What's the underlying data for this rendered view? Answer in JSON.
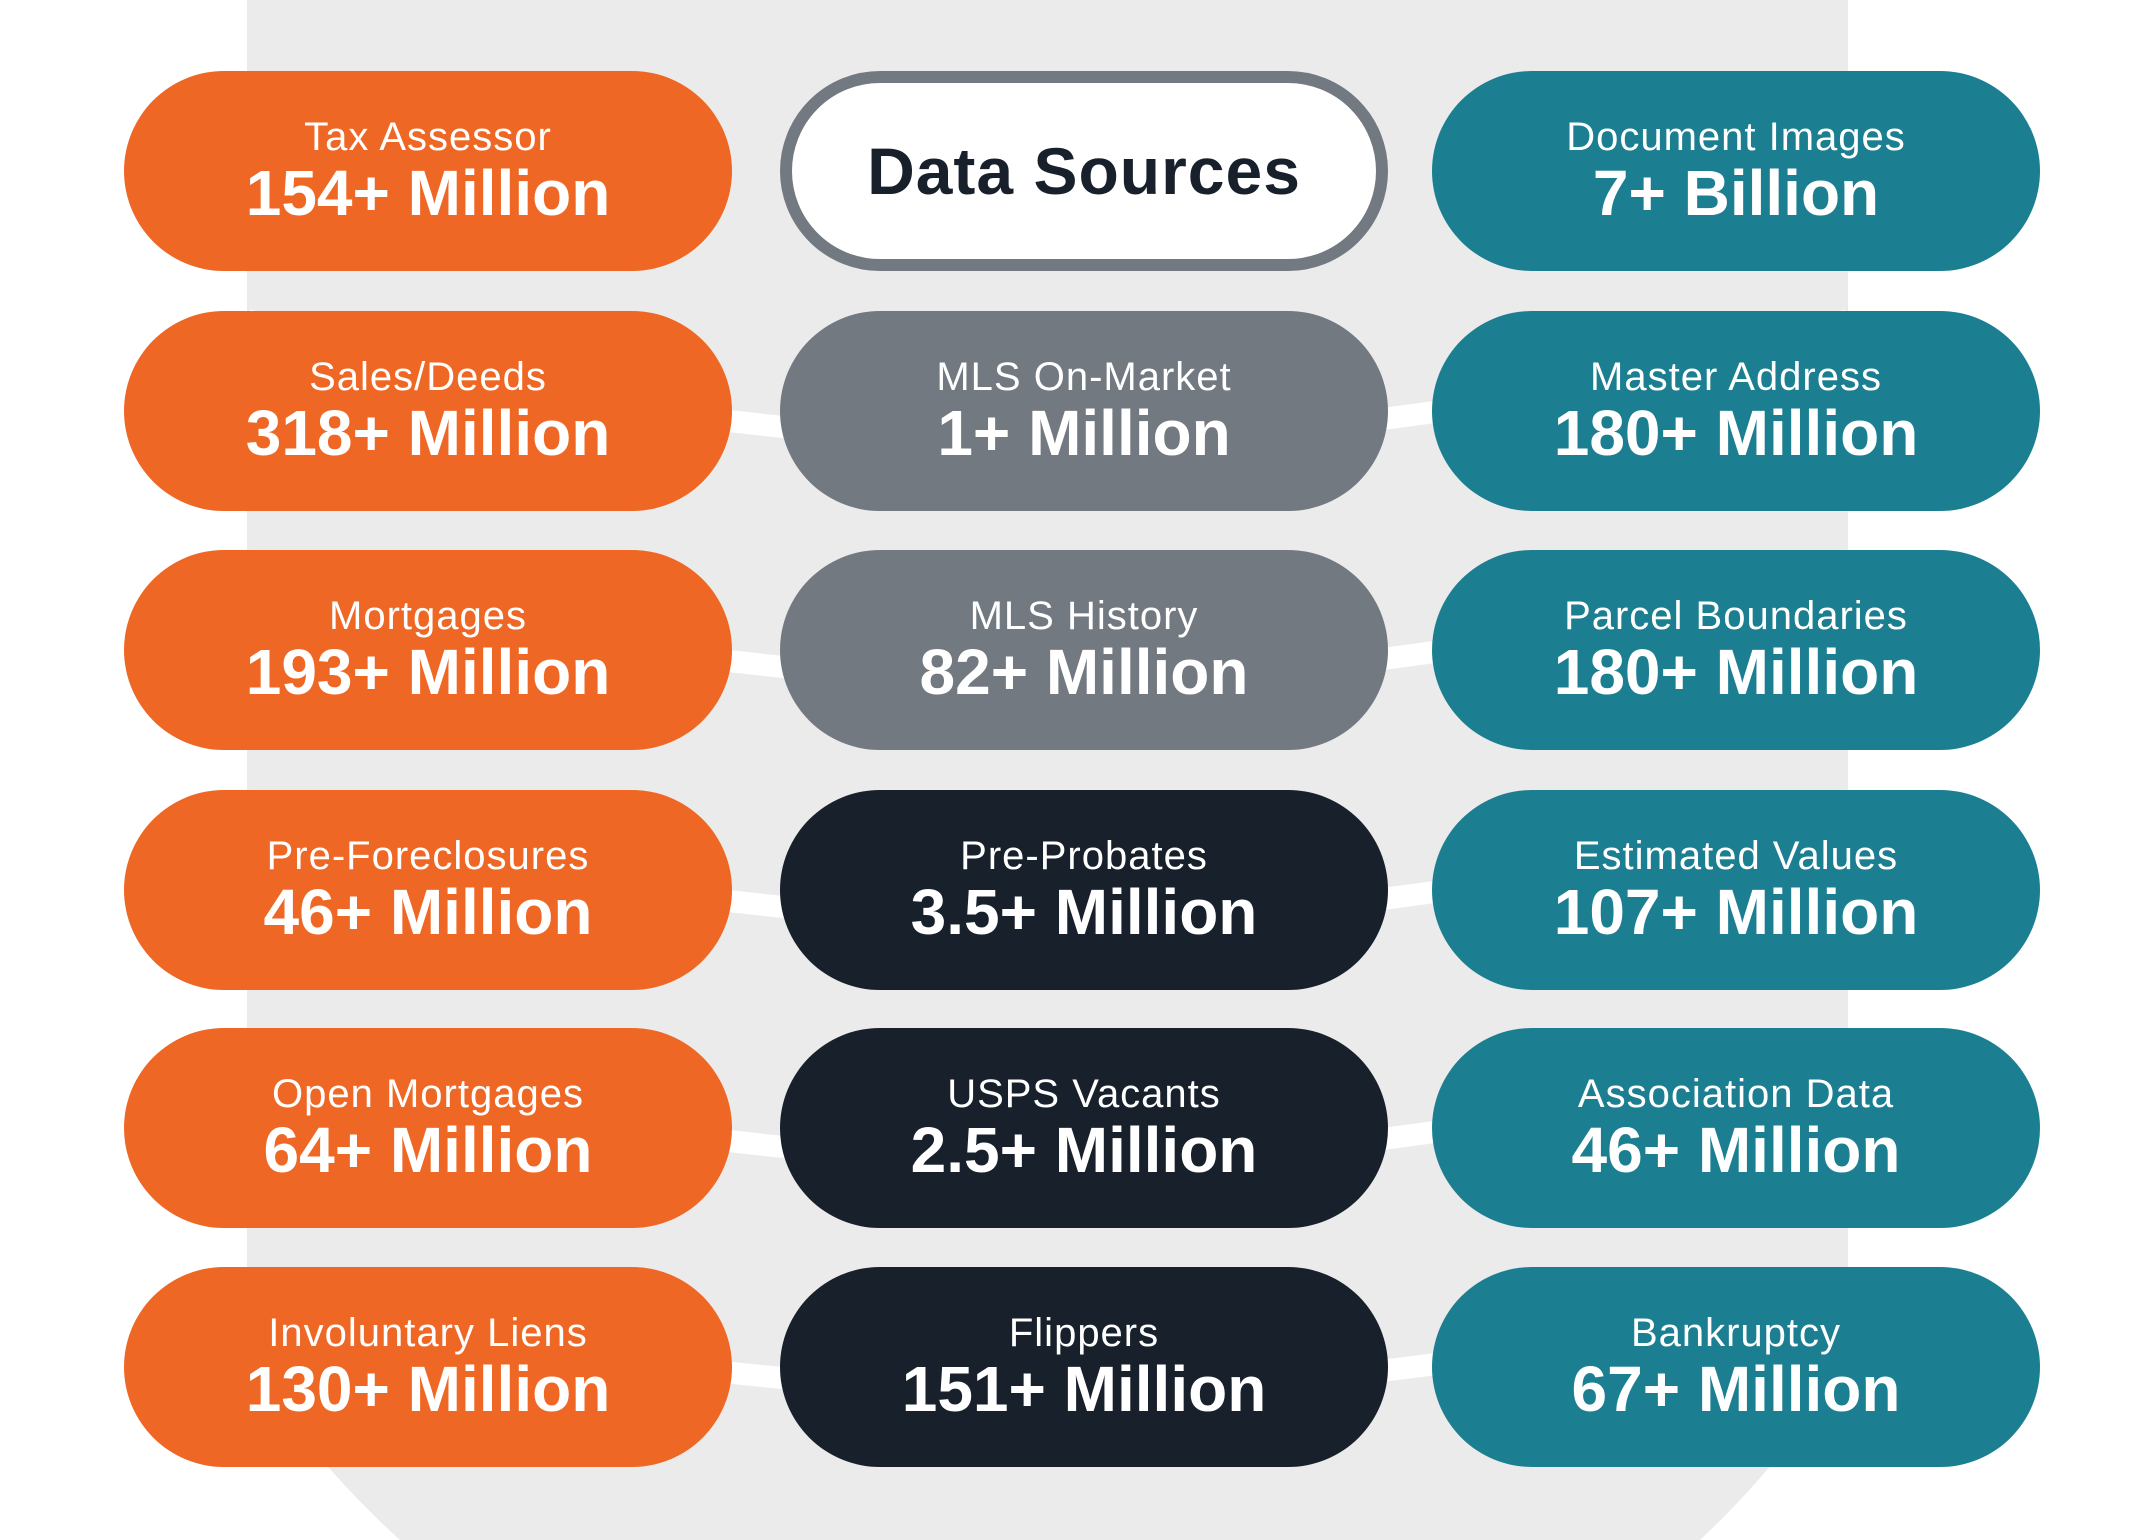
{
  "title": "Data Sources",
  "colors": {
    "orange": "#ef6724",
    "gray": "#737980",
    "navy": "#18202b",
    "teal": "#1c7f91",
    "background_shape": "#ebebeb"
  },
  "columns": [
    {
      "items": [
        {
          "label": "Tax Assessor",
          "value": "154+ Million"
        },
        {
          "label": "Sales/Deeds",
          "value": "318+ Million"
        },
        {
          "label": "Mortgages",
          "value": "193+ Million"
        },
        {
          "label": "Pre-Foreclosures",
          "value": "46+ Million"
        },
        {
          "label": "Open Mortgages",
          "value": "64+ Million"
        },
        {
          "label": "Involuntary Liens",
          "value": "130+ Million"
        }
      ]
    },
    {
      "items": [
        {
          "label": "MLS On-Market",
          "value": "1+ Million"
        },
        {
          "label": "MLS History",
          "value": "82+ Million"
        },
        {
          "label": "Pre-Probates",
          "value": "3.5+ Million"
        },
        {
          "label": "USPS Vacants",
          "value": "2.5+ Million"
        },
        {
          "label": "Flippers",
          "value": "151+ Million"
        }
      ]
    },
    {
      "items": [
        {
          "label": "Document Images",
          "value": "7+ Billion"
        },
        {
          "label": "Master Address",
          "value": "180+ Million"
        },
        {
          "label": "Parcel Boundaries",
          "value": "180+ Million"
        },
        {
          "label": "Estimated Values",
          "value": "107+ Million"
        },
        {
          "label": "Association Data",
          "value": "46+ Million"
        },
        {
          "label": "Bankruptcy",
          "value": "67+ Million"
        }
      ]
    }
  ]
}
